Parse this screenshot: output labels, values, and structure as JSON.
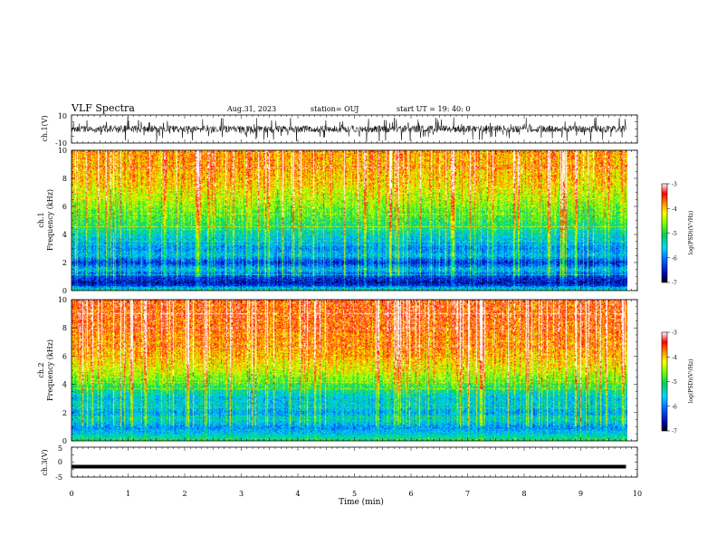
{
  "header": {
    "title": "VLF Spectra",
    "date": "Aug.31, 2023",
    "station": "station= OUJ",
    "start": "start  UT =   19: 40: 0"
  },
  "chart_data": [
    {
      "type": "line",
      "panel": "ch1-waveform",
      "ylabel": "ch.1(V)",
      "ylim": [
        -10,
        10
      ],
      "yticks": [
        10,
        -10
      ],
      "xlim": [
        0,
        10
      ],
      "baseline": 0,
      "amplitude_typical": 2.5,
      "amplitude_max": 9
    },
    {
      "type": "heatmap",
      "panel": "ch1-spectrogram",
      "ylabel_line1": "ch.1",
      "ylabel_line2": "Frequency (kHz)",
      "ylim": [
        0,
        10
      ],
      "yticks": [
        0,
        2,
        4,
        6,
        8,
        10
      ],
      "xlim": [
        0,
        9.8
      ],
      "colorbar": {
        "label": "log(PSD)(V²/Hz)",
        "ticks": [
          -3,
          -4,
          -5,
          -6,
          -7
        ],
        "range": [
          -7,
          -3
        ]
      },
      "profile_freq_khz": [
        0,
        0.5,
        1,
        1.5,
        2,
        2.5,
        3,
        4,
        5,
        6,
        7,
        8,
        9,
        10
      ],
      "profile_log_psd": [
        -5.2,
        -6.6,
        -6.3,
        -5.6,
        -6.4,
        -5.6,
        -5.9,
        -5.4,
        -4.9,
        -4.6,
        -4.2,
        -4.0,
        -3.9,
        -3.8
      ]
    },
    {
      "type": "heatmap",
      "panel": "ch2-spectrogram",
      "ylabel_line1": "ch.2",
      "ylabel_line2": "Frequency (kHz)",
      "ylim": [
        0,
        10
      ],
      "yticks": [
        0,
        2,
        4,
        6,
        8,
        10
      ],
      "xlim": [
        0,
        9.8
      ],
      "colorbar": {
        "label": "log(PSD)(V²/Hz)",
        "ticks": [
          -3,
          -4,
          -5,
          -6,
          -7
        ],
        "range": [
          -7,
          -3
        ]
      },
      "profile_freq_khz": [
        0,
        0.5,
        1,
        1.5,
        2,
        2.5,
        3,
        4,
        5,
        6,
        7,
        8,
        9,
        10
      ],
      "profile_log_psd": [
        -5.0,
        -5.6,
        -5.9,
        -5.4,
        -5.8,
        -5.5,
        -5.6,
        -4.9,
        -4.3,
        -4.0,
        -3.8,
        -3.7,
        -3.6,
        -3.6
      ]
    },
    {
      "type": "line",
      "panel": "ch3-waveform",
      "ylabel": "ch.3(V)",
      "ylim": [
        -5,
        5
      ],
      "yticks": [
        5,
        0,
        -5
      ],
      "xlim": [
        0,
        10
      ],
      "trace_level": -1.5,
      "xlabel": "Time (min)",
      "xticks": [
        0,
        1,
        2,
        3,
        4,
        5,
        6,
        7,
        8,
        9,
        10
      ]
    }
  ]
}
